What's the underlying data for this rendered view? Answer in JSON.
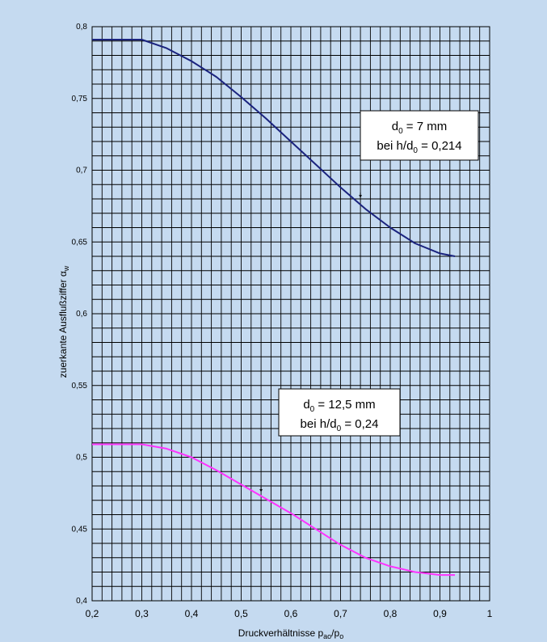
{
  "chart_data": {
    "type": "line",
    "xlabel": "Druckverhältnisse p",
    "xlabel_sub1": "ao",
    "xlabel_mid": "/p",
    "xlabel_sub2": "o",
    "ylabel": "zuerkante Ausflußziffer  α",
    "ylabel_sub": "w",
    "xlim": [
      0.2,
      1.0
    ],
    "ylim": [
      0.4,
      0.8
    ],
    "x_ticks": [
      0.2,
      0.3,
      0.4,
      0.5,
      0.6,
      0.7,
      0.8,
      0.9,
      1.0
    ],
    "x_tick_labels": [
      "0,2",
      "0,3",
      "0,4",
      "0,5",
      "0,6",
      "0,7",
      "0,8",
      "0,9",
      "1"
    ],
    "y_ticks": [
      0.4,
      0.45,
      0.5,
      0.55,
      0.6,
      0.65,
      0.7,
      0.75,
      0.8
    ],
    "y_tick_labels": [
      "0,4",
      "0,45",
      "0,5",
      "0,55",
      "0,6",
      "0,65",
      "0,7",
      "0,75",
      "0,8"
    ],
    "grid": true,
    "series": [
      {
        "color": "#1a237e",
        "x": [
          0.2,
          0.25,
          0.3,
          0.35,
          0.4,
          0.45,
          0.5,
          0.55,
          0.6,
          0.65,
          0.7,
          0.75,
          0.8,
          0.85,
          0.9,
          0.93
        ],
        "y": [
          0.791,
          0.791,
          0.791,
          0.785,
          0.776,
          0.765,
          0.751,
          0.736,
          0.72,
          0.704,
          0.688,
          0.673,
          0.66,
          0.649,
          0.642,
          0.64
        ]
      },
      {
        "color": "#ff33ff",
        "x": [
          0.2,
          0.25,
          0.3,
          0.35,
          0.4,
          0.45,
          0.5,
          0.55,
          0.6,
          0.65,
          0.7,
          0.75,
          0.8,
          0.85,
          0.9,
          0.93
        ],
        "y": [
          0.509,
          0.509,
          0.509,
          0.506,
          0.5,
          0.491,
          0.481,
          0.471,
          0.461,
          0.45,
          0.439,
          0.43,
          0.424,
          0.42,
          0.418,
          0.418
        ]
      }
    ],
    "annotations": [
      {
        "line1_pre": "d",
        "line1_sub": "0",
        "line1_post": " = 7 mm",
        "line2_pre": "bei h/d",
        "line2_sub": "0",
        "line2_post": " = 0,214",
        "arrow_at": [
          0.74,
          0.681
        ]
      },
      {
        "line1_pre": "d",
        "line1_sub": "0",
        "line1_post": " = 12,5 mm",
        "line2_pre": "bei h/d",
        "line2_sub": "0",
        "line2_post": " = 0,24",
        "arrow_at": [
          0.54,
          0.476
        ]
      }
    ]
  },
  "colors": {
    "background": "#c5daf0",
    "plot_area": "#c5daf0",
    "grid": "#000000",
    "annotation_box": "#ffffff"
  }
}
